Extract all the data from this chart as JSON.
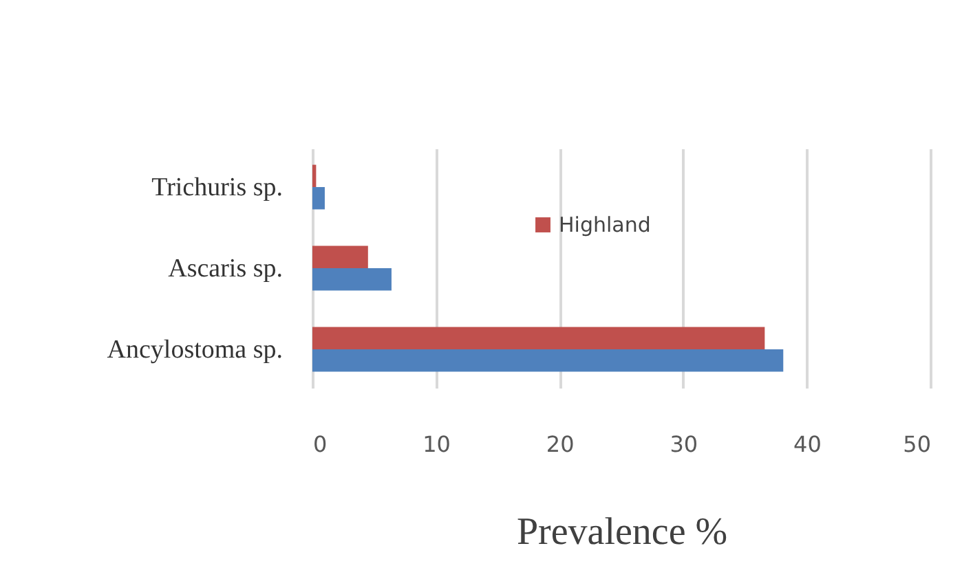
{
  "chart_data": {
    "type": "bar",
    "orientation": "horizontal",
    "categories": [
      "Trichuris sp.",
      "Ascaris sp.",
      "Ancylostoma sp."
    ],
    "series": [
      {
        "name": "Highland",
        "color": "#c0504d",
        "values": [
          0.3,
          4.5,
          36.6
        ]
      },
      {
        "color": "#4f81bd",
        "values": [
          1.0,
          6.4,
          38.1
        ]
      }
    ],
    "xlabel": "Prevalence %",
    "xlim": [
      0,
      50
    ],
    "xticks": [
      0,
      10,
      20,
      30,
      40,
      50
    ],
    "grid": "x",
    "legend": "top"
  }
}
